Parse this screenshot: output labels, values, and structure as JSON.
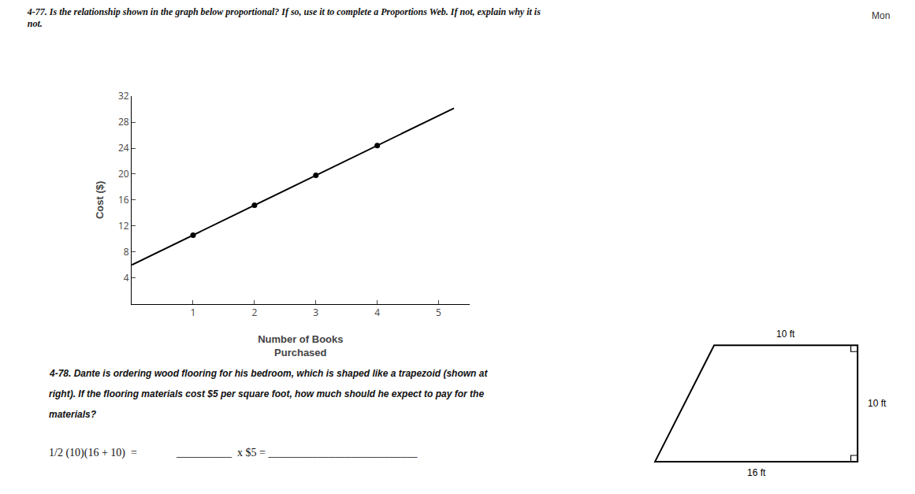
{
  "chart_data": {
    "type": "scatter",
    "title": [
      "4-77. Is the relationship shown in the graph below proportional? If so, use it to complete a Proportions Web. If not, explain why it is",
      "not."
    ],
    "xlabel": [
      "Number of Books",
      "Purchased"
    ],
    "ylabel": "Cost ($)",
    "series": [
      {
        "type": "scatter",
        "color": "#000000",
        "x": [
          1,
          2,
          3,
          4
        ],
        "values": [
          10.6,
          15.2,
          19.8,
          24.4
        ]
      },
      {
        "type": "line",
        "color": "#000000",
        "x": [
          0,
          5.25
        ],
        "values": [
          6,
          30.15
        ]
      }
    ],
    "xlim": [
      0,
      5.5
    ],
    "xticks": [
      1,
      2,
      3,
      4,
      5
    ],
    "ylim": [
      0,
      32
    ],
    "yticks": [
      4,
      8,
      12,
      16,
      20,
      24,
      28,
      32
    ],
    "grid": false,
    "annotations": {
      "corner": "Mon",
      "problem": [
        "4-78. Dante is ordering wood flooring for his bedroom, which is shaped like a trapezoid (shown at",
        "right). If the flooring materials cost $5 per square foot, how much should he expect to pay for the",
        "materials?"
      ],
      "formula": [
        "1/2 (10)(16 + 10)  =",
        "__________  x $5 = ___________________________"
      ],
      "trapezoid": {
        "top": "10 ft",
        "right": "10 ft",
        "bottom": "16 ft"
      }
    }
  }
}
